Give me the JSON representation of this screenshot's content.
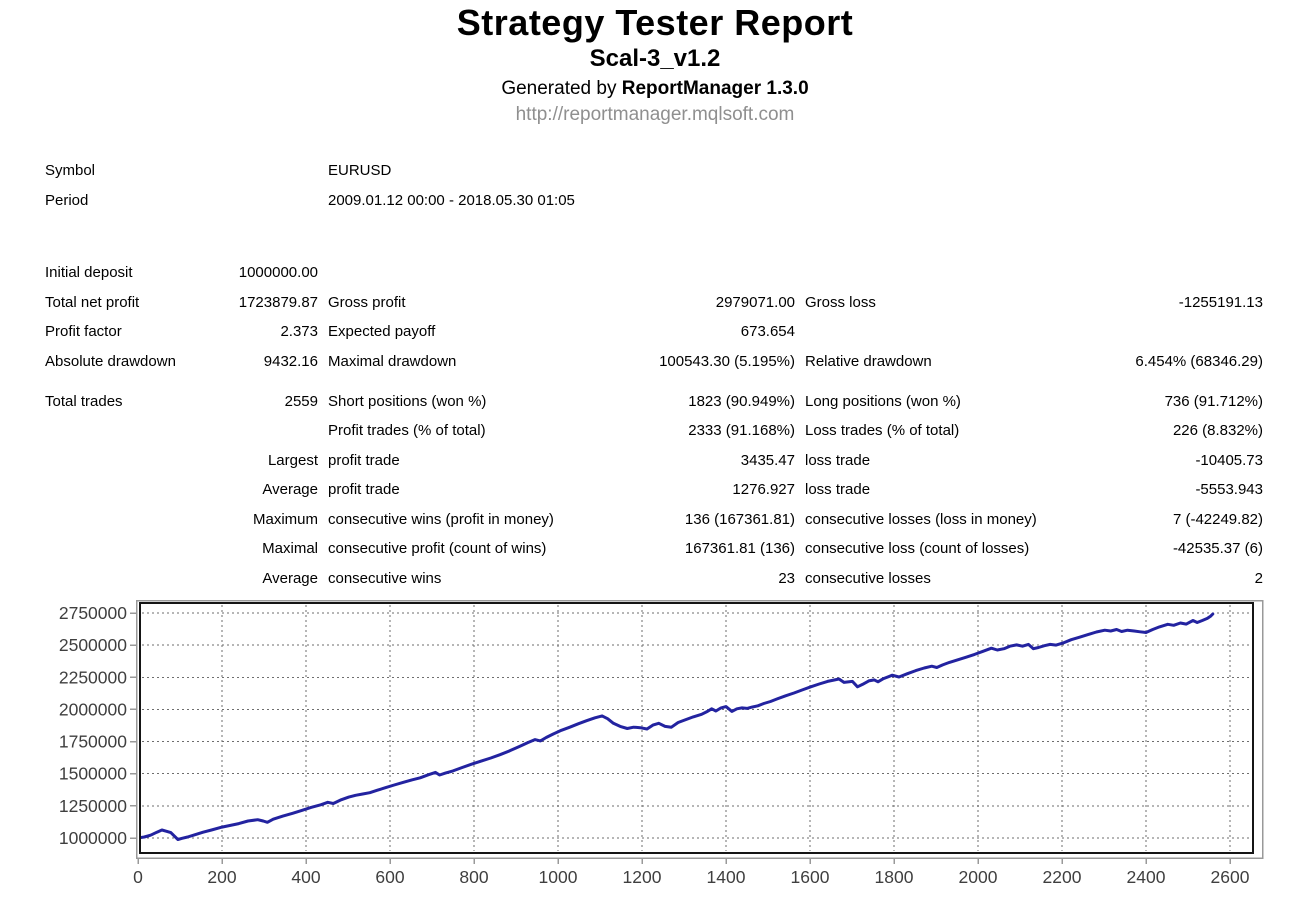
{
  "header": {
    "title": "Strategy Tester Report",
    "subtitle": "Scal-3_v1.2",
    "generated_prefix": "Generated by ",
    "generated_app": "ReportManager 1.3.0",
    "url": "http://reportmanager.mqlsoft.com"
  },
  "info_rows": [
    [
      "Symbol",
      "EURUSD"
    ],
    [
      "Period",
      "2009.01.12 00:00 - 2018.05.30 01:05"
    ]
  ],
  "stats": {
    "block_a": [
      [
        "Initial deposit",
        "1000000.00",
        "",
        "",
        "",
        ""
      ],
      [
        "Total net profit",
        "1723879.87",
        "Gross profit",
        "2979071.00",
        "Gross loss",
        "-1255191.13"
      ],
      [
        "Profit factor",
        "2.373",
        "Expected payoff",
        "673.654",
        "",
        ""
      ],
      [
        "Absolute drawdown",
        "9432.16",
        "Maximal drawdown",
        "100543.30 (5.195%)",
        "Relative drawdown",
        "6.454% (68346.29)"
      ]
    ],
    "block_b": [
      [
        "Total trades",
        "2559",
        "Short positions (won %)",
        "1823 (90.949%)",
        "Long positions (won %)",
        "736 (91.712%)"
      ],
      [
        "",
        "",
        "Profit trades (% of total)",
        "2333 (91.168%)",
        "Loss trades (% of total)",
        "226 (8.832%)"
      ],
      [
        "",
        "Largest",
        "profit trade",
        "3435.47",
        "loss trade",
        "-10405.73"
      ],
      [
        "",
        "Average",
        "profit trade",
        "1276.927",
        "loss trade",
        "-5553.943"
      ],
      [
        "",
        "Maximum",
        "consecutive wins (profit in money)",
        "136 (167361.81)",
        "consecutive losses (loss in money)",
        "7 (-42249.82)"
      ],
      [
        "",
        "Maximal",
        "consecutive profit (count of wins)",
        "167361.81 (136)",
        "consecutive loss (count of losses)",
        "-42535.37 (6)"
      ],
      [
        "",
        "Average",
        "consecutive wins",
        "23",
        "consecutive losses",
        "2"
      ]
    ]
  },
  "chart_data": {
    "type": "line",
    "title": "",
    "xlabel": "",
    "ylabel": "",
    "x_ticks": [
      "0",
      "200",
      "400",
      "600",
      "800",
      "1000",
      "1200",
      "1400",
      "1600",
      "1800",
      "2000",
      "2200",
      "2400",
      "2600"
    ],
    "y_ticks": [
      "1000000",
      "1250000",
      "1500000",
      "1750000",
      "2000000",
      "2250000",
      "2500000",
      "2750000"
    ],
    "xlim": [
      0,
      2655
    ],
    "ylim": [
      883000,
      2828000
    ],
    "grid": true,
    "legend": "none",
    "line_color": "#2323a0",
    "grid_color": "#6e6e6e",
    "axis_color": "#999999",
    "label_color": "#3f3f3f",
    "series": [
      {
        "name": "Balance",
        "points": [
          [
            0,
            1000000
          ],
          [
            15,
            1008000
          ],
          [
            30,
            1022000
          ],
          [
            45,
            1045000
          ],
          [
            57,
            1062000
          ],
          [
            68,
            1052000
          ],
          [
            78,
            1042000
          ],
          [
            88,
            1010000
          ],
          [
            95,
            988000
          ],
          [
            105,
            998000
          ],
          [
            118,
            1008000
          ],
          [
            135,
            1025000
          ],
          [
            155,
            1045000
          ],
          [
            175,
            1062000
          ],
          [
            200,
            1085000
          ],
          [
            220,
            1098000
          ],
          [
            240,
            1112000
          ],
          [
            262,
            1132000
          ],
          [
            285,
            1142000
          ],
          [
            298,
            1132000
          ],
          [
            308,
            1122000
          ],
          [
            322,
            1146000
          ],
          [
            345,
            1170000
          ],
          [
            368,
            1192000
          ],
          [
            390,
            1215000
          ],
          [
            412,
            1238000
          ],
          [
            435,
            1258000
          ],
          [
            452,
            1278000
          ],
          [
            465,
            1268000
          ],
          [
            482,
            1295000
          ],
          [
            502,
            1318000
          ],
          [
            518,
            1332000
          ],
          [
            535,
            1342000
          ],
          [
            552,
            1352000
          ],
          [
            570,
            1372000
          ],
          [
            590,
            1392000
          ],
          [
            610,
            1412000
          ],
          [
            632,
            1433000
          ],
          [
            652,
            1452000
          ],
          [
            672,
            1468000
          ],
          [
            692,
            1492000
          ],
          [
            708,
            1510000
          ],
          [
            718,
            1490000
          ],
          [
            732,
            1505000
          ],
          [
            750,
            1522000
          ],
          [
            772,
            1548000
          ],
          [
            795,
            1575000
          ],
          [
            818,
            1600000
          ],
          [
            840,
            1622000
          ],
          [
            862,
            1648000
          ],
          [
            885,
            1678000
          ],
          [
            908,
            1712000
          ],
          [
            928,
            1742000
          ],
          [
            945,
            1765000
          ],
          [
            958,
            1755000
          ],
          [
            972,
            1782000
          ],
          [
            988,
            1808000
          ],
          [
            1008,
            1838000
          ],
          [
            1028,
            1862000
          ],
          [
            1048,
            1888000
          ],
          [
            1068,
            1912000
          ],
          [
            1088,
            1935000
          ],
          [
            1105,
            1950000
          ],
          [
            1118,
            1928000
          ],
          [
            1132,
            1892000
          ],
          [
            1148,
            1868000
          ],
          [
            1165,
            1852000
          ],
          [
            1180,
            1862000
          ],
          [
            1196,
            1858000
          ],
          [
            1212,
            1848000
          ],
          [
            1226,
            1878000
          ],
          [
            1240,
            1892000
          ],
          [
            1255,
            1868000
          ],
          [
            1270,
            1862000
          ],
          [
            1286,
            1898000
          ],
          [
            1302,
            1918000
          ],
          [
            1322,
            1942000
          ],
          [
            1342,
            1962000
          ],
          [
            1356,
            1985000
          ],
          [
            1366,
            2005000
          ],
          [
            1376,
            1988000
          ],
          [
            1388,
            2012000
          ],
          [
            1400,
            2022000
          ],
          [
            1414,
            1985000
          ],
          [
            1426,
            2005000
          ],
          [
            1438,
            2012000
          ],
          [
            1450,
            2008000
          ],
          [
            1462,
            2018000
          ],
          [
            1476,
            2028000
          ],
          [
            1490,
            2046000
          ],
          [
            1506,
            2062000
          ],
          [
            1522,
            2082000
          ],
          [
            1542,
            2106000
          ],
          [
            1562,
            2128000
          ],
          [
            1582,
            2152000
          ],
          [
            1602,
            2176000
          ],
          [
            1622,
            2198000
          ],
          [
            1642,
            2218000
          ],
          [
            1662,
            2232000
          ],
          [
            1669,
            2237000
          ],
          [
            1681,
            2210000
          ],
          [
            1701,
            2218000
          ],
          [
            1713,
            2176000
          ],
          [
            1725,
            2195000
          ],
          [
            1740,
            2222000
          ],
          [
            1753,
            2230000
          ],
          [
            1762,
            2215000
          ],
          [
            1775,
            2240000
          ],
          [
            1796,
            2266000
          ],
          [
            1812,
            2252000
          ],
          [
            1832,
            2278000
          ],
          [
            1852,
            2302000
          ],
          [
            1872,
            2322000
          ],
          [
            1890,
            2336000
          ],
          [
            1902,
            2326000
          ],
          [
            1916,
            2346000
          ],
          [
            1932,
            2366000
          ],
          [
            1952,
            2386000
          ],
          [
            1972,
            2406000
          ],
          [
            1992,
            2428000
          ],
          [
            2012,
            2452000
          ],
          [
            2032,
            2476000
          ],
          [
            2046,
            2462000
          ],
          [
            2062,
            2472000
          ],
          [
            2076,
            2492000
          ],
          [
            2092,
            2502000
          ],
          [
            2106,
            2492000
          ],
          [
            2120,
            2506000
          ],
          [
            2132,
            2472000
          ],
          [
            2144,
            2482000
          ],
          [
            2158,
            2496000
          ],
          [
            2172,
            2506000
          ],
          [
            2186,
            2500000
          ],
          [
            2202,
            2516000
          ],
          [
            2222,
            2542000
          ],
          [
            2242,
            2562000
          ],
          [
            2262,
            2582000
          ],
          [
            2282,
            2602000
          ],
          [
            2302,
            2616000
          ],
          [
            2316,
            2610000
          ],
          [
            2330,
            2622000
          ],
          [
            2342,
            2606000
          ],
          [
            2356,
            2616000
          ],
          [
            2372,
            2610000
          ],
          [
            2386,
            2604000
          ],
          [
            2400,
            2598000
          ],
          [
            2416,
            2622000
          ],
          [
            2432,
            2642000
          ],
          [
            2452,
            2662000
          ],
          [
            2466,
            2654000
          ],
          [
            2482,
            2672000
          ],
          [
            2496,
            2664000
          ],
          [
            2512,
            2692000
          ],
          [
            2522,
            2676000
          ],
          [
            2534,
            2692000
          ],
          [
            2546,
            2708000
          ],
          [
            2554,
            2726000
          ],
          [
            2559,
            2742000
          ]
        ]
      }
    ]
  }
}
